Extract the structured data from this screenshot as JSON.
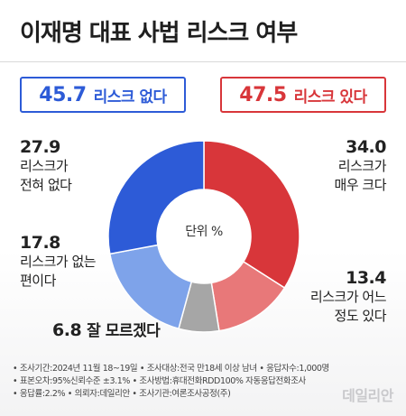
{
  "title": "이재명 대표 사법 리스크 여부",
  "summary": {
    "left": {
      "value": "45.7",
      "text": "리스크 없다",
      "color": "#2d5bd7"
    },
    "right": {
      "value": "47.5",
      "text": "리스크 있다",
      "color": "#d8363a"
    }
  },
  "chart_data": {
    "type": "pie",
    "donut": true,
    "center_label": "단위 %",
    "slices": [
      {
        "label": "리스크가 매우 크다",
        "value": 34.0,
        "color": "#d8363a"
      },
      {
        "label": "리스크가 어느 정도 있다",
        "value": 13.4,
        "color": "#e87879"
      },
      {
        "label": "잘 모르겠다",
        "value": 6.8,
        "color": "#a6a6a6"
      },
      {
        "label": "리스크가 없는 편이다",
        "value": 17.8,
        "color": "#7ea3ea"
      },
      {
        "label": "리스크가 전혀 없다",
        "value": 27.9,
        "color": "#2d5bd7"
      }
    ]
  },
  "labels": {
    "very_high": {
      "value": "34.0",
      "line1": "리스크가",
      "line2": "매우 크다"
    },
    "somewhat": {
      "value": "13.4",
      "line1": "리스크가 어느",
      "line2": "정도 있다"
    },
    "dont_know": {
      "value": "6.8",
      "text": "잘 모르겠다"
    },
    "not_much": {
      "value": "17.8",
      "line1": "리스크가 없는",
      "line2": "편이다"
    },
    "none": {
      "value": "27.9",
      "line1": "리스크가",
      "line2": "전혀 없다"
    }
  },
  "notes": {
    "line1": "• 조사기간:2024년 11월 18~19일 • 조사대상:전국 만18세 이상 남녀 • 응답자수:1,000명",
    "line2": "• 표본오차:95%신뢰수준 ±3.1% • 조사방법:휴대전화RDD100% 자동응답전화조사",
    "line3": "• 응답률:2.2% • 의뢰자:데일리안 • 조사기관:여론조사공정(주)"
  },
  "brand": "데일리안"
}
